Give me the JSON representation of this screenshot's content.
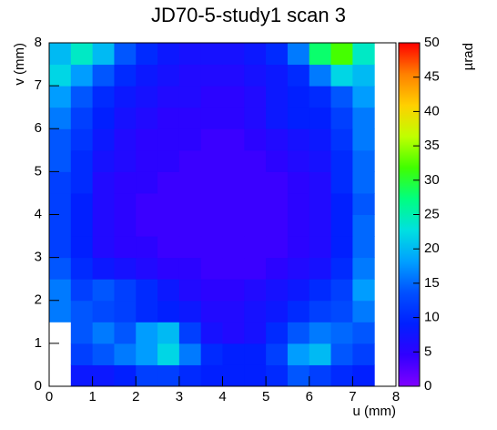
{
  "chart_data": {
    "type": "heatmap",
    "title": "JD70-5-study1 scan 3",
    "x_label": "u (mm)",
    "y_label": "v (mm)",
    "z_label": "µrad",
    "xlim": [
      0,
      8
    ],
    "xticks": [
      0,
      1,
      2,
      3,
      4,
      5,
      6,
      7,
      8
    ],
    "ylim": [
      0,
      8
    ],
    "yticks": [
      0,
      1,
      2,
      3,
      4,
      5,
      6,
      7,
      8
    ],
    "zlim": [
      0,
      50
    ],
    "zticks": [
      0,
      5,
      10,
      15,
      20,
      25,
      30,
      35,
      40,
      45,
      50
    ],
    "colormap": [
      "#8000ff",
      "#3000ff",
      "#0020ff",
      "#0050ff",
      "#00a0ff",
      "#00e0e0",
      "#00ff80",
      "#40ff00",
      "#c0ff00",
      "#ffd000",
      "#ff8000",
      "#ff0000"
    ],
    "z": [
      [
        null,
        8,
        8,
        9,
        12,
        12,
        10,
        9,
        9,
        9,
        10,
        14,
        12,
        10,
        9,
        null
      ],
      [
        null,
        12,
        14,
        16,
        18,
        22,
        16,
        10,
        9,
        9,
        12,
        18,
        20,
        14,
        12,
        null
      ],
      [
        null,
        14,
        16,
        14,
        18,
        20,
        12,
        7,
        6,
        7,
        10,
        14,
        16,
        15,
        14,
        null
      ],
      [
        16,
        14,
        13,
        12,
        10,
        9,
        8,
        6,
        6,
        7,
        8,
        10,
        12,
        13,
        16,
        null
      ],
      [
        16,
        12,
        14,
        12,
        10,
        8,
        6,
        5,
        5,
        6,
        7,
        8,
        10,
        12,
        18,
        null
      ],
      [
        14,
        10,
        8,
        7,
        6,
        5,
        5,
        4,
        4,
        4,
        5,
        6,
        7,
        10,
        16,
        null
      ],
      [
        12,
        9,
        6,
        5,
        5,
        4,
        4,
        4,
        4,
        4,
        4,
        5,
        6,
        9,
        15,
        null
      ],
      [
        12,
        9,
        6,
        5,
        4,
        4,
        4,
        4,
        4,
        4,
        4,
        5,
        6,
        9,
        15,
        null
      ],
      [
        12,
        9,
        6,
        5,
        4,
        4,
        4,
        4,
        4,
        4,
        4,
        5,
        6,
        9,
        14,
        null
      ],
      [
        12,
        10,
        6,
        5,
        5,
        4,
        4,
        4,
        4,
        4,
        4,
        5,
        6,
        10,
        15,
        null
      ],
      [
        14,
        10,
        7,
        6,
        5,
        5,
        4,
        4,
        4,
        4,
        5,
        6,
        7,
        10,
        15,
        null
      ],
      [
        14,
        11,
        8,
        6,
        5,
        5,
        5,
        4,
        4,
        5,
        6,
        7,
        8,
        11,
        16,
        null
      ],
      [
        16,
        12,
        9,
        7,
        6,
        5,
        5,
        5,
        5,
        6,
        8,
        9,
        9,
        12,
        16,
        null
      ],
      [
        18,
        14,
        10,
        8,
        7,
        6,
        6,
        5,
        5,
        6,
        8,
        9,
        10,
        14,
        18,
        null
      ],
      [
        22,
        18,
        14,
        10,
        8,
        7,
        6,
        6,
        6,
        7,
        8,
        10,
        16,
        22,
        20,
        null
      ],
      [
        20,
        24,
        20,
        14,
        10,
        8,
        7,
        7,
        7,
        8,
        10,
        16,
        28,
        32,
        24,
        null
      ]
    ]
  }
}
